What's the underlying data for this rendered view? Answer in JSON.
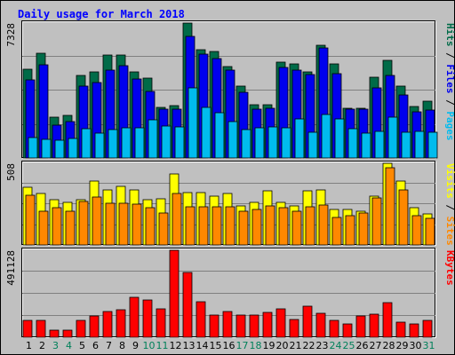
{
  "chart_data": {
    "type": "bar",
    "title": "Daily usage for March 2018",
    "categories": [
      "1",
      "2",
      "3",
      "4",
      "5",
      "6",
      "7",
      "8",
      "9",
      "10",
      "11",
      "12",
      "13",
      "14",
      "15",
      "16",
      "17",
      "18",
      "19",
      "20",
      "21",
      "22",
      "23",
      "24",
      "25",
      "26",
      "27",
      "28",
      "29",
      "30",
      "31"
    ],
    "weekend_days": [
      "3",
      "4",
      "10",
      "11",
      "17",
      "18",
      "24",
      "25",
      "31"
    ],
    "panels": [
      {
        "id": "hits_files_pages",
        "max_label": "7328",
        "ylim": [
          0,
          7328
        ],
        "right_label": [
          "Pages",
          " / ",
          "Files",
          " / ",
          "Hits"
        ],
        "series": [
          {
            "name": "Hits",
            "color": "#006b48",
            "values": [
              4800,
              5700,
              2200,
              2300,
              4500,
              4700,
              5600,
              5600,
              4700,
              4350,
              2750,
              2850,
              7328,
              5900,
              5800,
              4950,
              3900,
              2900,
              2900,
              5200,
              5100,
              4700,
              6100,
              5100,
              2700,
              2700,
              4400,
              5300,
              3900,
              2800,
              3100
            ]
          },
          {
            "name": "Files",
            "color": "#0000ee",
            "values": [
              4250,
              5050,
              1800,
              2000,
              3900,
              4100,
              4750,
              5000,
              4300,
              3600,
              2650,
              2650,
              6600,
              5650,
              5400,
              4750,
              3550,
              2650,
              2700,
              4900,
              4750,
              4550,
              6000,
              4600,
              2650,
              2650,
              3800,
              4500,
              3400,
              2500,
              2600
            ]
          },
          {
            "name": "Pages",
            "color": "#00bbee",
            "values": [
              1100,
              1000,
              950,
              1050,
              1600,
              1350,
              1550,
              1650,
              1650,
              2050,
              1750,
              1700,
              3800,
              2750,
              2450,
              2000,
              1550,
              1650,
              1700,
              1650,
              2100,
              1400,
              2350,
              2100,
              1600,
              1350,
              1450,
              2200,
              1400,
              1450,
              1400
            ]
          }
        ]
      },
      {
        "id": "visits_sites",
        "max_label": "508",
        "ylim": [
          0,
          508
        ],
        "right_label": [
          "Sites",
          " / ",
          "Visits"
        ],
        "series": [
          {
            "name": "Visits",
            "color": "#ffff00",
            "values": [
              360,
              320,
              280,
              265,
              280,
              395,
              345,
              365,
              340,
              280,
              285,
              440,
              325,
              325,
              305,
              320,
              245,
              265,
              335,
              265,
              245,
              335,
              345,
              220,
              220,
              210,
              305,
              508,
              400,
              230,
              195
            ]
          },
          {
            "name": "Sites",
            "color": "#ff8800",
            "values": [
              310,
              210,
              230,
              210,
              270,
              300,
              260,
              260,
              255,
              230,
              200,
              320,
              240,
              235,
              240,
              235,
              210,
              220,
              245,
              230,
              210,
              235,
              250,
              170,
              180,
              200,
              295,
              480,
              340,
              180,
              165
            ]
          }
        ]
      },
      {
        "id": "kbytes",
        "max_label": "491128",
        "ylim": [
          0,
          491128
        ],
        "right_label": [
          "KBytes"
        ],
        "series": [
          {
            "name": "KBytes",
            "color": "#ff0000",
            "values": [
              95000,
              95000,
              42000,
              42000,
              95000,
              120000,
              145000,
              155000,
              225000,
              210000,
              160000,
              491128,
              365000,
              200000,
              125000,
              145000,
              125000,
              125000,
              140000,
              160000,
              100000,
              175000,
              135000,
              95000,
              75000,
              120000,
              130000,
              195000,
              85000,
              75000,
              95000
            ]
          }
        ]
      }
    ]
  }
}
